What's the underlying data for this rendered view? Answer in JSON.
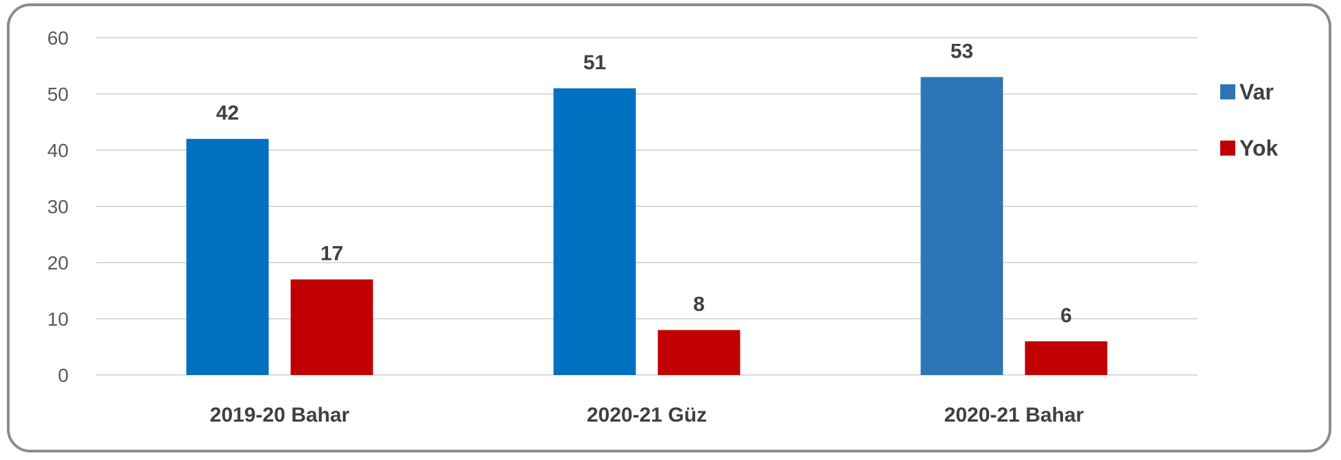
{
  "chart_data": {
    "type": "bar",
    "title": "",
    "xlabel": "",
    "ylabel": "",
    "categories": [
      "2019-20 Bahar",
      "2020-21 Güz",
      "2020-21 Bahar"
    ],
    "series": [
      {
        "name": "Var",
        "values": [
          42,
          51,
          53
        ],
        "colors": [
          "#0070c0",
          "#0070c0",
          "#2e75b6"
        ]
      },
      {
        "name": "Yok",
        "values": [
          17,
          8,
          6
        ],
        "colors": [
          "#c00000",
          "#c00000",
          "#c00000"
        ]
      }
    ],
    "ylim": [
      0,
      60
    ],
    "yticks": [
      "0",
      "10",
      "20",
      "30",
      "40",
      "50",
      "60"
    ],
    "grid": true,
    "legend_position": "right",
    "legend_colors": [
      "#2e75b6",
      "#c00000"
    ],
    "data_labels": true
  }
}
